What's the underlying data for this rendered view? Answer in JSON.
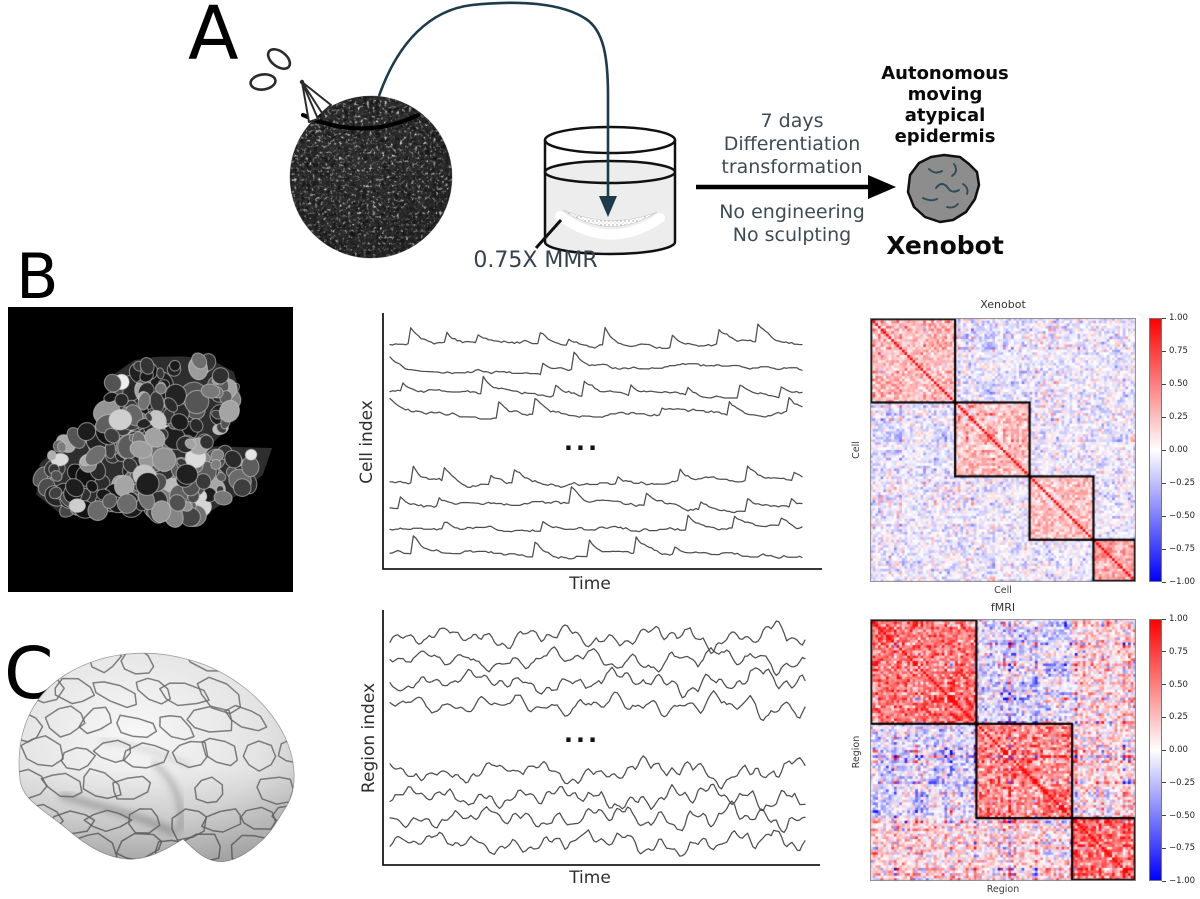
{
  "figure": {
    "panelA": {
      "label": "A",
      "process_text_top": "7 days\nDifferentiation\ntransformation",
      "process_text_bottom": "No engineering\nNo sculpting",
      "dish_label": "0.75X MMR",
      "result_heading": "Autonomous\nmoving\natypical\nepidermis",
      "result_label": "Xenobot"
    },
    "panelB": {
      "label": "B"
    },
    "panelC": {
      "label": "C"
    }
  },
  "chart_data": [
    {
      "id": "cell-traces",
      "type": "line",
      "panel": "B",
      "title": "",
      "xlabel": "Time",
      "ylabel": "Cell index",
      "ellipsis": "...",
      "n_traces_shown": 8,
      "groups": [
        4,
        4
      ],
      "style": "spiky-calcium",
      "note": "schematic unlabeled calcium-activity traces, axes without ticks",
      "seed": 11,
      "trace_color": "#4e4e4e"
    },
    {
      "id": "xenobot-correlation",
      "type": "heatmap",
      "title": "Xenobot",
      "xlabel": "Cell",
      "ylabel": "Cell",
      "colormap": "bwr",
      "vmin": -1,
      "vmax": 1,
      "n": 100,
      "module_boundaries_fraction": [
        0,
        0.32,
        0.6,
        0.84,
        1
      ],
      "block_mean_correlation": [
        [
          0.26,
          -0.09,
          -0.05,
          -0.06
        ],
        [
          -0.09,
          0.24,
          -0.06,
          -0.05
        ],
        [
          -0.05,
          -0.06,
          0.24,
          -0.06
        ],
        [
          -0.06,
          -0.05,
          -0.06,
          0.34
        ]
      ],
      "noise_std": 0.13,
      "structure": 0.1,
      "seed": 3,
      "colorbar_ticks": [
        "1.00",
        "0.75",
        "0.50",
        "0.25",
        "0.00",
        "−0.25",
        "−0.50",
        "−0.75",
        "−1.00"
      ]
    },
    {
      "id": "region-traces",
      "type": "line",
      "panel": "C",
      "title": "",
      "xlabel": "Time",
      "ylabel": "Region index",
      "ellipsis": "...",
      "n_traces_shown": 8,
      "groups": [
        4,
        4
      ],
      "style": "smooth-oscillatory",
      "note": "schematic unlabeled fMRI-like traces, axes without ticks",
      "seed": 21,
      "trace_color": "#4e4e4e"
    },
    {
      "id": "fmri-correlation",
      "type": "heatmap",
      "title": "fMRI",
      "xlabel": "Region",
      "ylabel": "Region",
      "colormap": "bwr",
      "vmin": -1,
      "vmax": 1,
      "n": 100,
      "module_boundaries_fraction": [
        0,
        0.4,
        0.76,
        1
      ],
      "block_mean_correlation": [
        [
          0.52,
          -0.12,
          0.14
        ],
        [
          -0.12,
          0.46,
          0.1
        ],
        [
          0.14,
          0.1,
          0.54
        ]
      ],
      "noise_std": 0.2,
      "structure": 0.22,
      "seed": 5,
      "colorbar_ticks": [
        "1.00",
        "0.75",
        "0.50",
        "0.25",
        "0.00",
        "−0.25",
        "−0.50",
        "−0.75",
        "−1.00"
      ]
    }
  ]
}
